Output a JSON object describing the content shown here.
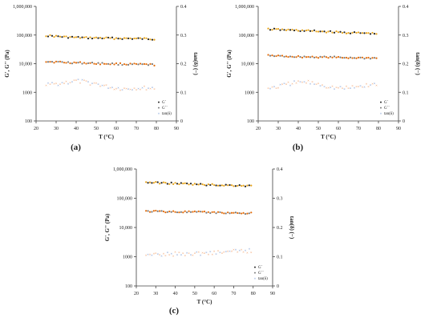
{
  "chart_data": [
    {
      "panel_label": "(a)",
      "type": "scatter",
      "xlabel": "T (°C)",
      "ylabel_left": "G', G'' (Pa)",
      "ylabel_right": "tan(δ) (−)",
      "xlim": [
        20,
        90
      ],
      "ylim_left": [
        100,
        1000000
      ],
      "ylim_right": [
        0,
        0.4
      ],
      "y_scale_left": "log",
      "x_ticks": [
        "20",
        "30",
        "40",
        "50",
        "60",
        "70",
        "80",
        "90"
      ],
      "y_ticks_left": [
        "100",
        "1000",
        "10,000",
        "100,000",
        "1,000,000"
      ],
      "y_ticks_right": [
        "0",
        "0.1",
        "0.2",
        "0.3",
        "0.4"
      ],
      "legend": {
        "position": "bottom-right",
        "entries": [
          "G´",
          "G´´",
          "tan(δ)"
        ]
      },
      "series": [
        {
          "name": "G´",
          "axis": "left",
          "x": [
            25,
            30,
            35,
            40,
            45,
            50,
            55,
            60,
            65,
            70,
            75,
            80
          ],
          "values": [
            96000,
            90000,
            85000,
            82000,
            80000,
            79000,
            78000,
            77000,
            76000,
            75000,
            74000,
            72000
          ]
        },
        {
          "name": "G´´",
          "axis": "left",
          "x": [
            25,
            30,
            35,
            40,
            45,
            50,
            55,
            60,
            65,
            70,
            75,
            80
          ],
          "values": [
            12000,
            11500,
            11000,
            10800,
            10500,
            10200,
            10000,
            9800,
            9600,
            9400,
            9300,
            9100
          ]
        },
        {
          "name": "tan(δ)",
          "axis": "right",
          "x": [
            25,
            30,
            35,
            40,
            45,
            50,
            55,
            60,
            65,
            70,
            75,
            80
          ],
          "values": [
            0.125,
            0.13,
            0.135,
            0.14,
            0.135,
            0.13,
            0.12,
            0.115,
            0.113,
            0.115,
            0.115,
            0.115
          ]
        }
      ]
    },
    {
      "panel_label": "(b)",
      "type": "scatter",
      "xlabel": "T (°C)",
      "ylabel_left": "G', G'' (Pa)",
      "ylabel_right": "tan(δ) (−)",
      "xlim": [
        20,
        90
      ],
      "ylim_left": [
        100,
        1000000
      ],
      "ylim_right": [
        0,
        0.4
      ],
      "y_scale_left": "log",
      "x_ticks": [
        "20",
        "30",
        "40",
        "50",
        "60",
        "70",
        "80",
        "90"
      ],
      "y_ticks_left": [
        "100",
        "1000",
        "10,000",
        "100,000",
        "1,000,000"
      ],
      "y_ticks_right": [
        "0",
        "0.1",
        "0.2",
        "0.3",
        "0.4"
      ],
      "legend": {
        "position": "bottom-right",
        "entries": [
          "G´",
          "G´´",
          "tan(δ)"
        ]
      },
      "series": [
        {
          "name": "G´",
          "axis": "left",
          "x": [
            25,
            30,
            35,
            40,
            45,
            50,
            55,
            60,
            65,
            70,
            75,
            80
          ],
          "values": [
            160000,
            155000,
            150000,
            145000,
            140000,
            135000,
            130000,
            125000,
            120000,
            118000,
            115000,
            110000
          ]
        },
        {
          "name": "G´´",
          "axis": "left",
          "x": [
            25,
            30,
            35,
            40,
            45,
            50,
            55,
            60,
            65,
            70,
            75,
            80
          ],
          "values": [
            19000,
            18500,
            18000,
            17500,
            17200,
            17000,
            16800,
            16500,
            16200,
            16000,
            15800,
            15500
          ]
        },
        {
          "name": "tan(δ)",
          "axis": "right",
          "x": [
            25,
            30,
            35,
            40,
            45,
            50,
            55,
            60,
            65,
            70,
            75,
            80
          ],
          "values": [
            0.115,
            0.12,
            0.13,
            0.135,
            0.135,
            0.13,
            0.12,
            0.115,
            0.115,
            0.12,
            0.125,
            0.13
          ]
        }
      ]
    },
    {
      "panel_label": "(c)",
      "type": "scatter",
      "xlabel": "T (°C)",
      "ylabel_left": "G', G'' (Pa)",
      "ylabel_right": "tan(δ) (−)",
      "xlim": [
        20,
        90
      ],
      "ylim_left": [
        100,
        1000000
      ],
      "ylim_right": [
        0,
        0.4
      ],
      "y_scale_left": "log",
      "x_ticks": [
        "20",
        "30",
        "40",
        "50",
        "60",
        "70",
        "80",
        "90"
      ],
      "y_ticks_left": [
        "100",
        "1000",
        "10,000",
        "100,000",
        "1,000,000"
      ],
      "y_ticks_right": [
        "0",
        "0.1",
        "0.2",
        "0.3",
        "0.4"
      ],
      "legend": {
        "position": "bottom-right",
        "entries": [
          "G´",
          "G´´",
          "tan(δ)"
        ]
      },
      "series": [
        {
          "name": "G´",
          "axis": "left",
          "x": [
            25,
            30,
            35,
            40,
            45,
            50,
            55,
            60,
            65,
            70,
            75,
            80
          ],
          "values": [
            350000,
            340000,
            330000,
            320000,
            310000,
            300000,
            290000,
            285000,
            280000,
            275000,
            270000,
            265000
          ]
        },
        {
          "name": "G´´",
          "axis": "left",
          "x": [
            25,
            30,
            35,
            40,
            45,
            50,
            55,
            60,
            65,
            70,
            75,
            80
          ],
          "values": [
            36000,
            35500,
            35000,
            34500,
            34000,
            33500,
            33000,
            32500,
            32000,
            31500,
            31000,
            30500
          ]
        },
        {
          "name": "tan(δ)",
          "axis": "right",
          "x": [
            25,
            30,
            35,
            40,
            45,
            50,
            55,
            60,
            65,
            70,
            75,
            80
          ],
          "values": [
            0.105,
            0.107,
            0.108,
            0.11,
            0.11,
            0.112,
            0.113,
            0.115,
            0.117,
            0.118,
            0.12,
            0.122
          ]
        }
      ]
    }
  ],
  "colors": {
    "gprime": "#222222",
    "gprime_alt": "#e8a317",
    "gdoubleprime": "#e36c0a",
    "gdoubleprime_alt": "#7a7a7a",
    "tandelta_a": "#4472c4",
    "tandelta_b": "#ed7d31",
    "axis": "#404040",
    "grid": "#d9d9d9"
  }
}
